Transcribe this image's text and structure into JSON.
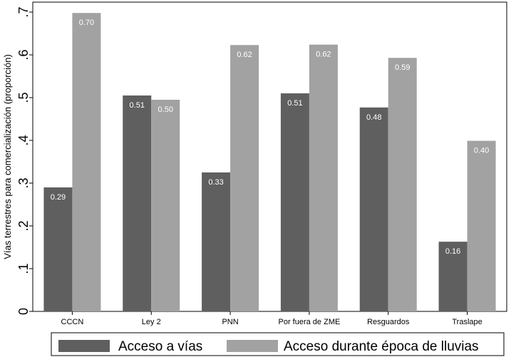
{
  "chart_data": {
    "type": "bar",
    "categories": [
      "CCCN",
      "Ley 2",
      "PNN",
      "Por fuera de ZME",
      "Resguardos",
      "Traslape"
    ],
    "series": [
      {
        "name": "Acceso a vías",
        "values": [
          0.29,
          0.505,
          0.325,
          0.51,
          0.477,
          0.163
        ],
        "labels": [
          "0.29",
          "0.51",
          "0.33",
          "0.51",
          "0.48",
          "0.16"
        ],
        "color": "#5f5f5f"
      },
      {
        "name": "Acceso durante época de lluvias",
        "values": [
          0.698,
          0.495,
          0.623,
          0.624,
          0.593,
          0.399
        ],
        "labels": [
          "0.70",
          "0.50",
          "0.62",
          "0.62",
          "0.59",
          "0.40"
        ],
        "color": "#a2a2a2"
      }
    ],
    "ylabel": "Vías terrestres para comercialización (proporción)",
    "ylim": [
      0,
      0.7
    ],
    "yticks": [
      0,
      0.1,
      0.2,
      0.3,
      0.4,
      0.5,
      0.6,
      0.7
    ],
    "ytick_labels": [
      "0",
      ".1",
      ".2",
      ".3",
      ".4",
      ".5",
      ".6",
      ".7"
    ],
    "grid": false,
    "legend_position": "bottom"
  }
}
